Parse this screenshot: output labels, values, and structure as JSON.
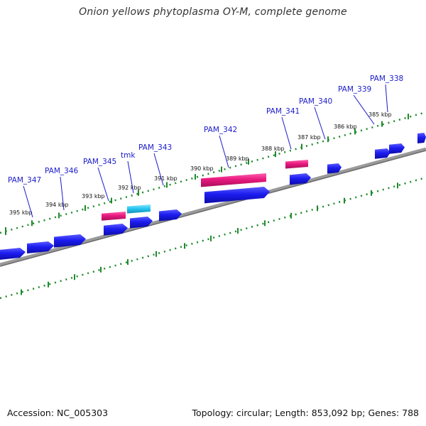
{
  "title": "Onion yellows phytoplasma OY-M, complete genome",
  "footer": {
    "accession": "Accession: NC_005303",
    "summary": "Topology: circular; Length: 853,092 bp; Genes: 788"
  },
  "colors": {
    "cds": "#1c1cf0",
    "rna": "#e8197e",
    "tmk": "#28c6f2",
    "backbone": "#7a7a7a",
    "ticks": "#1f8a2c",
    "label": "#1a1acc"
  },
  "kbp_labels": [
    "395 kbp",
    "394 kbp",
    "393 kbp",
    "392 kbp",
    "391 kbp",
    "390 kbp",
    "389 kbp",
    "388 kbp",
    "387 kbp",
    "386 kbp",
    "385 kbp"
  ],
  "gene_labels": [
    "PAM_347",
    "PAM_346",
    "PAM_345",
    "tmk",
    "PAM_343",
    "PAM_342",
    "PAM_341",
    "PAM_340",
    "PAM_339",
    "PAM_338"
  ]
}
